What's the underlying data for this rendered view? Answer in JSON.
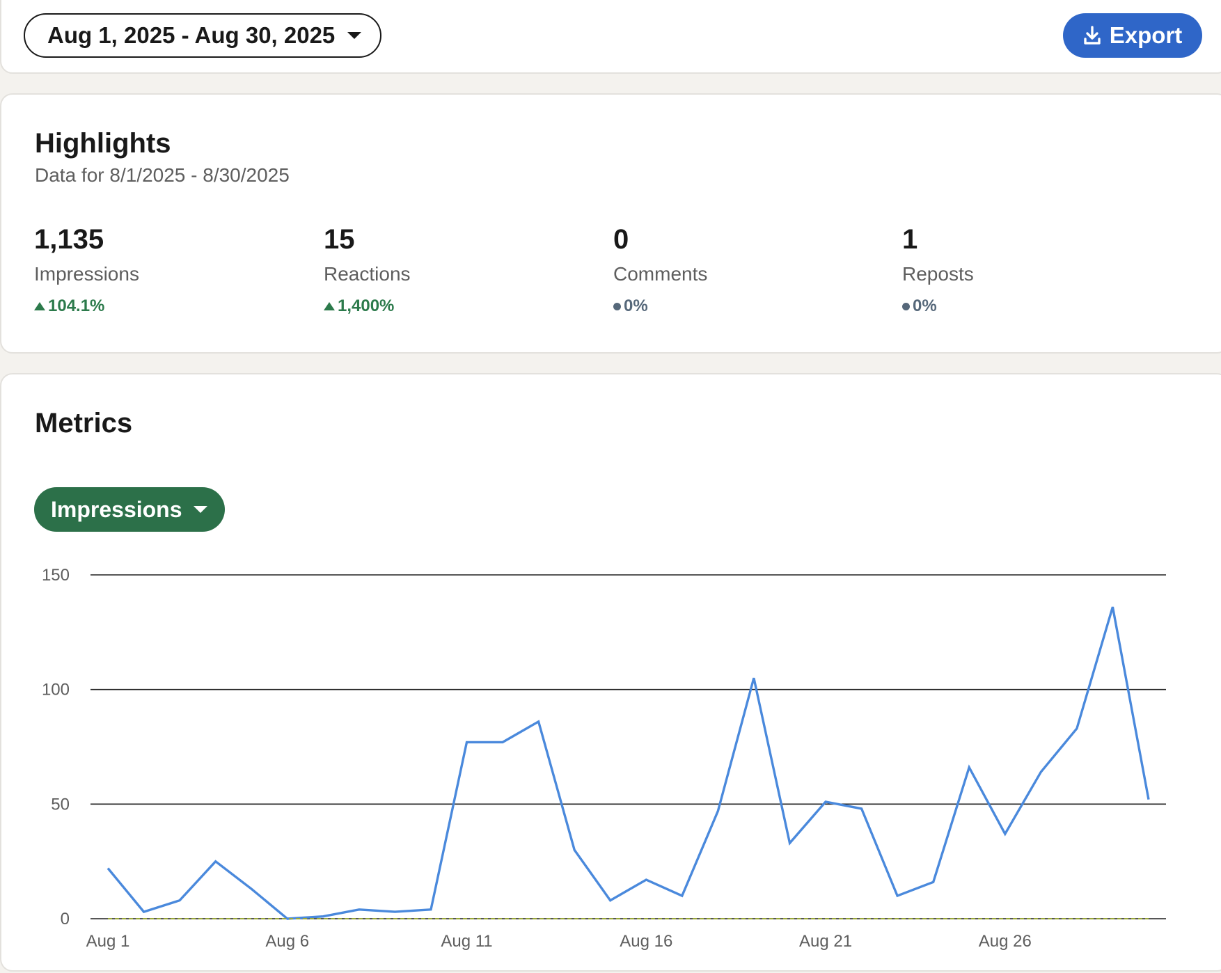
{
  "toolbar": {
    "date_range": "Aug 1, 2025 - Aug 30, 2025",
    "export_label": "Export",
    "export_icon": "download-icon",
    "accent": "#2f66c8"
  },
  "highlights": {
    "title": "Highlights",
    "subtitle": "Data for 8/1/2025 - 8/30/2025",
    "stats": [
      {
        "value": "1,135",
        "label": "Impressions",
        "delta": "104.1%",
        "trend": "up"
      },
      {
        "value": "15",
        "label": "Reactions",
        "delta": "1,400%",
        "trend": "up"
      },
      {
        "value": "0",
        "label": "Comments",
        "delta": "0%",
        "trend": "flat"
      },
      {
        "value": "1",
        "label": "Reposts",
        "delta": "0%",
        "trend": "flat"
      }
    ],
    "colors": {
      "up": "#2c7a4b",
      "flat": "#56687a"
    }
  },
  "metrics": {
    "title": "Metrics",
    "selected_metric": "Impressions",
    "select_color": "#2c7049"
  },
  "chart_data": {
    "type": "line",
    "x": [
      "Aug 1",
      "Aug 2",
      "Aug 3",
      "Aug 4",
      "Aug 5",
      "Aug 6",
      "Aug 7",
      "Aug 8",
      "Aug 9",
      "Aug 10",
      "Aug 11",
      "Aug 12",
      "Aug 13",
      "Aug 14",
      "Aug 15",
      "Aug 16",
      "Aug 17",
      "Aug 18",
      "Aug 19",
      "Aug 20",
      "Aug 21",
      "Aug 22",
      "Aug 23",
      "Aug 24",
      "Aug 25",
      "Aug 26",
      "Aug 27",
      "Aug 28",
      "Aug 29",
      "Aug 30"
    ],
    "xticks": [
      "Aug 1",
      "Aug 6",
      "Aug 11",
      "Aug 16",
      "Aug 21",
      "Aug 26"
    ],
    "yticks": [
      0,
      50,
      100,
      150
    ],
    "ylim": [
      0,
      150
    ],
    "grid": true,
    "series": [
      {
        "color": "#4a89dc",
        "values": [
          22,
          3,
          8,
          25,
          13,
          0,
          1,
          4,
          3,
          4,
          77,
          77,
          86,
          30,
          8,
          17,
          10,
          47,
          105,
          33,
          51,
          48,
          10,
          16,
          66,
          37,
          64,
          83,
          136,
          52
        ]
      },
      {
        "color": "#9aa83a",
        "dashed": true,
        "values": [
          0,
          0,
          0,
          0,
          0,
          0,
          0,
          0,
          0,
          0,
          0,
          0,
          0,
          0,
          0,
          0,
          0,
          0,
          0,
          0,
          0,
          0,
          0,
          0,
          0,
          0,
          0,
          0,
          0,
          0
        ]
      }
    ]
  }
}
